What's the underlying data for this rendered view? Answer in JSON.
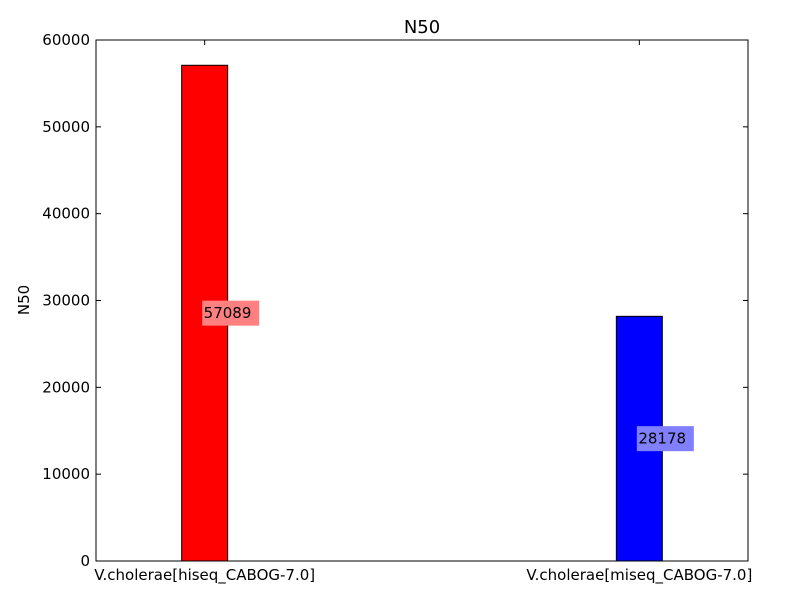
{
  "chart_data": {
    "type": "bar",
    "title": "N50",
    "xlabel": "",
    "ylabel": "N50",
    "categories": [
      "V.cholerae[hiseq_CABOG-7.0]",
      "V.cholerae[miseq_CABOG-7.0]"
    ],
    "values": [
      57089,
      28178
    ],
    "data_labels": [
      "57089",
      "28178"
    ],
    "bar_colors": [
      "#ff0000",
      "#0000ff"
    ],
    "label_box_colors": [
      "#ff8080",
      "#8080ff"
    ],
    "ylim": [
      0,
      60000
    ],
    "yticks": [
      0,
      10000,
      20000,
      30000,
      40000,
      50000,
      60000
    ],
    "ytick_labels": [
      "0",
      "10000",
      "20000",
      "30000",
      "40000",
      "50000",
      "60000"
    ],
    "grid": false,
    "legend": "none"
  }
}
